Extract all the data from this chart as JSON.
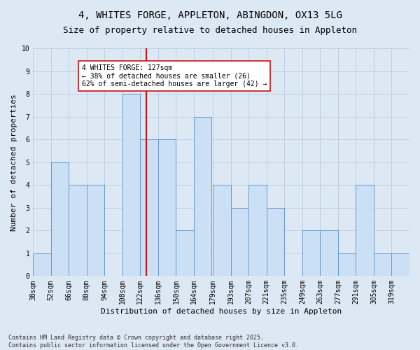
{
  "title": "4, WHITES FORGE, APPLETON, ABINGDON, OX13 5LG",
  "subtitle": "Size of property relative to detached houses in Appleton",
  "xlabel": "Distribution of detached houses by size in Appleton",
  "ylabel": "Number of detached properties",
  "bin_labels": [
    "38sqm",
    "52sqm",
    "66sqm",
    "80sqm",
    "94sqm",
    "108sqm",
    "122sqm",
    "136sqm",
    "150sqm",
    "164sqm",
    "179sqm",
    "193sqm",
    "207sqm",
    "221sqm",
    "235sqm",
    "249sqm",
    "263sqm",
    "277sqm",
    "291sqm",
    "305sqm",
    "319sqm"
  ],
  "bin_starts": [
    38,
    52,
    66,
    80,
    94,
    108,
    122,
    136,
    150,
    164,
    179,
    193,
    207,
    221,
    235,
    249,
    263,
    277,
    291,
    305,
    319
  ],
  "bin_width": 14,
  "counts": [
    1,
    5,
    4,
    4,
    0,
    8,
    6,
    6,
    2,
    7,
    4,
    3,
    4,
    3,
    0,
    2,
    2,
    1,
    4,
    1,
    1
  ],
  "bar_color": "#cce0f5",
  "bar_edge_color": "#6699cc",
  "property_size": 127,
  "vline_color": "#cc1111",
  "annotation_line1": "4 WHITES FORGE: 127sqm",
  "annotation_line2": "← 38% of detached houses are smaller (26)",
  "annotation_line3": "62% of semi-detached houses are larger (42) →",
  "annotation_box_color": "#ffffff",
  "annotation_box_edge": "#cc1111",
  "ylim": [
    0,
    10
  ],
  "yticks": [
    0,
    1,
    2,
    3,
    4,
    5,
    6,
    7,
    8,
    9,
    10
  ],
  "grid_color": "#bbccdd",
  "bg_color": "#dde8f5",
  "footer_line1": "Contains HM Land Registry data © Crown copyright and database right 2025.",
  "footer_line2": "Contains public sector information licensed under the Open Government Licence v3.0.",
  "title_fontsize": 10,
  "subtitle_fontsize": 9,
  "axis_label_fontsize": 8,
  "tick_fontsize": 7,
  "annotation_fontsize": 7,
  "footer_fontsize": 6
}
